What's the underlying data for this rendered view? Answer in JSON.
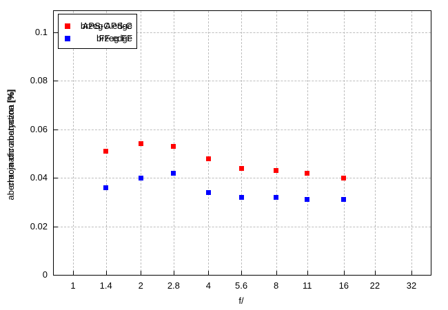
{
  "chart_data": {
    "type": "scatter",
    "title": "",
    "xlabel": "f/",
    "ylabel_pl": "aberracja chromatyczna [%]",
    "ylabel_en": "chromatic aberration [%]",
    "x_scale": "log2",
    "x_ticks": [
      "1",
      "1.4",
      "2",
      "2.8",
      "4",
      "5.6",
      "8",
      "11",
      "16",
      "22",
      "32"
    ],
    "y_ticks": [
      "0",
      "0.02",
      "0.04",
      "0.06",
      "0.08",
      "0.1"
    ],
    "ylim": [
      0,
      0.1088
    ],
    "grid": true,
    "legend_position": "top-left",
    "note": "Polish and English text layers are rendered overlapping each other in the source chart",
    "x": [
      1.4,
      2,
      2.8,
      4,
      5.6,
      8,
      11,
      16
    ],
    "series": [
      {
        "label_pl": "brzeg APS-C",
        "label_en": "APS-C edge",
        "color": "#ff0000",
        "values": [
          0.051,
          0.054,
          0.053,
          0.048,
          0.044,
          0.043,
          0.042,
          0.04
        ]
      },
      {
        "label_pl": "brzeg FF",
        "label_en": "FF edge",
        "color": "#0000ff",
        "values": [
          0.036,
          0.04,
          0.042,
          0.034,
          0.032,
          0.032,
          0.031,
          0.031
        ]
      }
    ]
  },
  "colors": {
    "background": "#ffffff",
    "border": "#000000",
    "grid": "#bdbdbd",
    "series1": "#ff0000",
    "series2": "#0000ff"
  }
}
